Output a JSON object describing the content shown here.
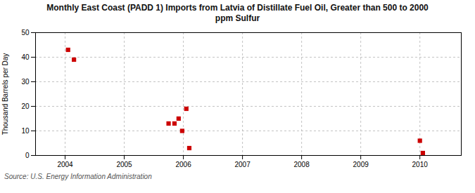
{
  "chart_data": {
    "type": "scatter",
    "title": "Monthly East Coast (PADD 1) Imports from Latvia of Distillate Fuel Oil, Greater than 500 to 2000\nppm Sulfur",
    "ylabel": "Thousand Barrels per Day",
    "caption": "Source: U.S. Energy Information Administration",
    "x": [
      2004.05,
      2004.15,
      2005.75,
      2005.85,
      2005.92,
      2005.98,
      2006.05,
      2006.1,
      2010.0,
      2010.05
    ],
    "values": [
      43,
      39,
      13,
      13,
      15,
      10,
      19,
      3,
      6,
      1
    ],
    "color": "#cc0000",
    "marker": "square",
    "xlim": [
      2003.5,
      2010.7
    ],
    "xticks": [
      2004,
      2005,
      2006,
      2007,
      2008,
      2009,
      2010
    ],
    "ylim": [
      0,
      50
    ],
    "yticks": [
      0,
      10,
      20,
      30,
      40,
      50
    ],
    "grid": true
  }
}
